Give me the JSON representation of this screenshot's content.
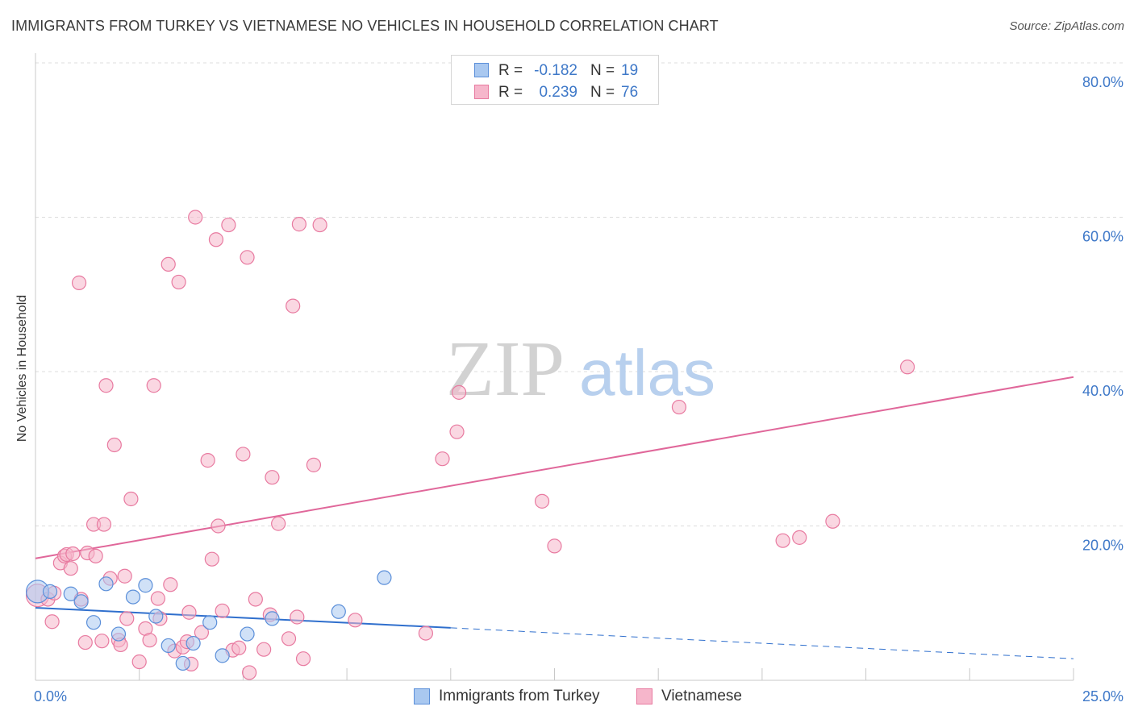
{
  "title": "IMMIGRANTS FROM TURKEY VS VIETNAMESE NO VEHICLES IN HOUSEHOLD CORRELATION CHART",
  "source": "Source: ZipAtlas.com",
  "watermark": {
    "zip": "ZIP",
    "atlas": "atlas"
  },
  "colors": {
    "blue_fill": "#a9c8f0",
    "blue_stroke": "#5b8fd9",
    "blue_line": "#2f6fcd",
    "pink_fill": "#f6b6cb",
    "pink_stroke": "#e87aa0",
    "pink_line": "#e0679a",
    "grid": "#dcdcdc",
    "axis": "#c8c8c8",
    "tick_text": "#3e78c8"
  },
  "stats": {
    "r_label": "R =",
    "n_label": "N =",
    "rows": [
      {
        "series": "Immigrants from Turkey",
        "r": "-0.182",
        "n": "19"
      },
      {
        "series": "Vietnamese",
        "r": "0.239",
        "n": "76"
      }
    ]
  },
  "legend": [
    "Immigrants from Turkey",
    "Vietnamese"
  ],
  "chart_data": {
    "type": "scatter",
    "title": "IMMIGRANTS FROM TURKEY VS VIETNAMESE NO VEHICLES IN HOUSEHOLD CORRELATION CHART",
    "xlabel": "",
    "ylabel": "No Vehicles in Household",
    "xlim": [
      0,
      25
    ],
    "ylim": [
      0,
      80
    ],
    "x_tick_labels": [
      "0.0%",
      "25.0%"
    ],
    "y_ticks": [
      20,
      40,
      60,
      80
    ],
    "y_tick_labels": [
      "20.0%",
      "40.0%",
      "60.0%",
      "80.0%"
    ],
    "grid": true,
    "legend_position": "bottom-center",
    "series": [
      {
        "name": "Immigrants from Turkey",
        "color": "blue",
        "points": [
          {
            "x": 0.05,
            "y": 11.5,
            "big": true
          },
          {
            "x": 0.35,
            "y": 11.5
          },
          {
            "x": 0.85,
            "y": 11.2
          },
          {
            "x": 1.1,
            "y": 10.2
          },
          {
            "x": 1.4,
            "y": 7.5
          },
          {
            "x": 1.7,
            "y": 12.5
          },
          {
            "x": 2.0,
            "y": 6.0
          },
          {
            "x": 2.35,
            "y": 10.8
          },
          {
            "x": 2.65,
            "y": 12.3
          },
          {
            "x": 2.9,
            "y": 8.3
          },
          {
            "x": 3.2,
            "y": 4.5
          },
          {
            "x": 3.55,
            "y": 2.2
          },
          {
            "x": 3.8,
            "y": 4.8
          },
          {
            "x": 4.2,
            "y": 7.5
          },
          {
            "x": 4.5,
            "y": 3.2
          },
          {
            "x": 5.1,
            "y": 6.0
          },
          {
            "x": 5.7,
            "y": 8.0
          },
          {
            "x": 7.3,
            "y": 8.9
          },
          {
            "x": 8.4,
            "y": 13.3
          }
        ],
        "trend": {
          "x0": 0,
          "y0": 9.4,
          "x1": 10,
          "y1": 6.8,
          "dash_to_x": 25,
          "dash_to_y": 2.8
        }
      },
      {
        "name": "Vietnamese",
        "color": "pink",
        "points": [
          {
            "x": 0.05,
            "y": 11.0,
            "big": true
          },
          {
            "x": 0.3,
            "y": 10.5
          },
          {
            "x": 0.45,
            "y": 11.3
          },
          {
            "x": 0.4,
            "y": 7.6
          },
          {
            "x": 0.6,
            "y": 15.2
          },
          {
            "x": 0.7,
            "y": 16.1
          },
          {
            "x": 0.75,
            "y": 16.3
          },
          {
            "x": 0.85,
            "y": 14.5
          },
          {
            "x": 0.9,
            "y": 16.4
          },
          {
            "x": 1.05,
            "y": 51.5
          },
          {
            "x": 1.1,
            "y": 10.5
          },
          {
            "x": 1.2,
            "y": 4.9
          },
          {
            "x": 1.25,
            "y": 16.5
          },
          {
            "x": 1.4,
            "y": 20.2
          },
          {
            "x": 1.45,
            "y": 16.1
          },
          {
            "x": 1.6,
            "y": 5.1
          },
          {
            "x": 1.65,
            "y": 20.2
          },
          {
            "x": 1.7,
            "y": 38.2
          },
          {
            "x": 1.8,
            "y": 13.2
          },
          {
            "x": 1.9,
            "y": 30.5
          },
          {
            "x": 2.0,
            "y": 5.2
          },
          {
            "x": 2.05,
            "y": 4.6
          },
          {
            "x": 2.15,
            "y": 13.5
          },
          {
            "x": 2.2,
            "y": 8.0
          },
          {
            "x": 2.3,
            "y": 23.5
          },
          {
            "x": 2.5,
            "y": 2.4
          },
          {
            "x": 2.65,
            "y": 6.7
          },
          {
            "x": 2.75,
            "y": 5.2
          },
          {
            "x": 2.85,
            "y": 38.2
          },
          {
            "x": 2.95,
            "y": 10.6
          },
          {
            "x": 3.0,
            "y": 8.0
          },
          {
            "x": 3.2,
            "y": 53.9
          },
          {
            "x": 3.25,
            "y": 12.4
          },
          {
            "x": 3.35,
            "y": 3.8
          },
          {
            "x": 3.45,
            "y": 51.6
          },
          {
            "x": 3.55,
            "y": 4.3
          },
          {
            "x": 3.65,
            "y": 5.0
          },
          {
            "x": 3.75,
            "y": 2.1
          },
          {
            "x": 3.85,
            "y": 60.0
          },
          {
            "x": 4.0,
            "y": 6.2
          },
          {
            "x": 4.15,
            "y": 28.5
          },
          {
            "x": 4.25,
            "y": 15.7
          },
          {
            "x": 4.35,
            "y": 57.1
          },
          {
            "x": 4.4,
            "y": 20.0
          },
          {
            "x": 4.5,
            "y": 9.0
          },
          {
            "x": 4.65,
            "y": 59.0
          },
          {
            "x": 4.75,
            "y": 3.9
          },
          {
            "x": 4.9,
            "y": 4.2
          },
          {
            "x": 5.0,
            "y": 29.3
          },
          {
            "x": 5.1,
            "y": 54.8
          },
          {
            "x": 5.15,
            "y": 1.0
          },
          {
            "x": 5.3,
            "y": 10.5
          },
          {
            "x": 5.5,
            "y": 4.0
          },
          {
            "x": 5.65,
            "y": 8.5
          },
          {
            "x": 5.7,
            "y": 26.3
          },
          {
            "x": 5.85,
            "y": 20.3
          },
          {
            "x": 6.1,
            "y": 5.4
          },
          {
            "x": 6.2,
            "y": 48.5
          },
          {
            "x": 6.35,
            "y": 59.1
          },
          {
            "x": 6.45,
            "y": 2.8
          },
          {
            "x": 6.7,
            "y": 27.9
          },
          {
            "x": 6.85,
            "y": 59.0
          },
          {
            "x": 7.7,
            "y": 7.8
          },
          {
            "x": 9.4,
            "y": 6.1
          },
          {
            "x": 9.8,
            "y": 28.7
          },
          {
            "x": 10.2,
            "y": 37.3
          },
          {
            "x": 10.15,
            "y": 32.2
          },
          {
            "x": 12.2,
            "y": 23.2
          },
          {
            "x": 12.5,
            "y": 17.4
          },
          {
            "x": 15.5,
            "y": 35.4
          },
          {
            "x": 18.4,
            "y": 18.5
          },
          {
            "x": 18.0,
            "y": 18.1
          },
          {
            "x": 19.2,
            "y": 20.6
          },
          {
            "x": 21.0,
            "y": 40.6
          },
          {
            "x": 6.3,
            "y": 8.2
          },
          {
            "x": 3.7,
            "y": 8.8
          }
        ],
        "trend": {
          "x0": 0,
          "y0": 15.8,
          "x1": 25,
          "y1": 39.3
        }
      }
    ]
  }
}
